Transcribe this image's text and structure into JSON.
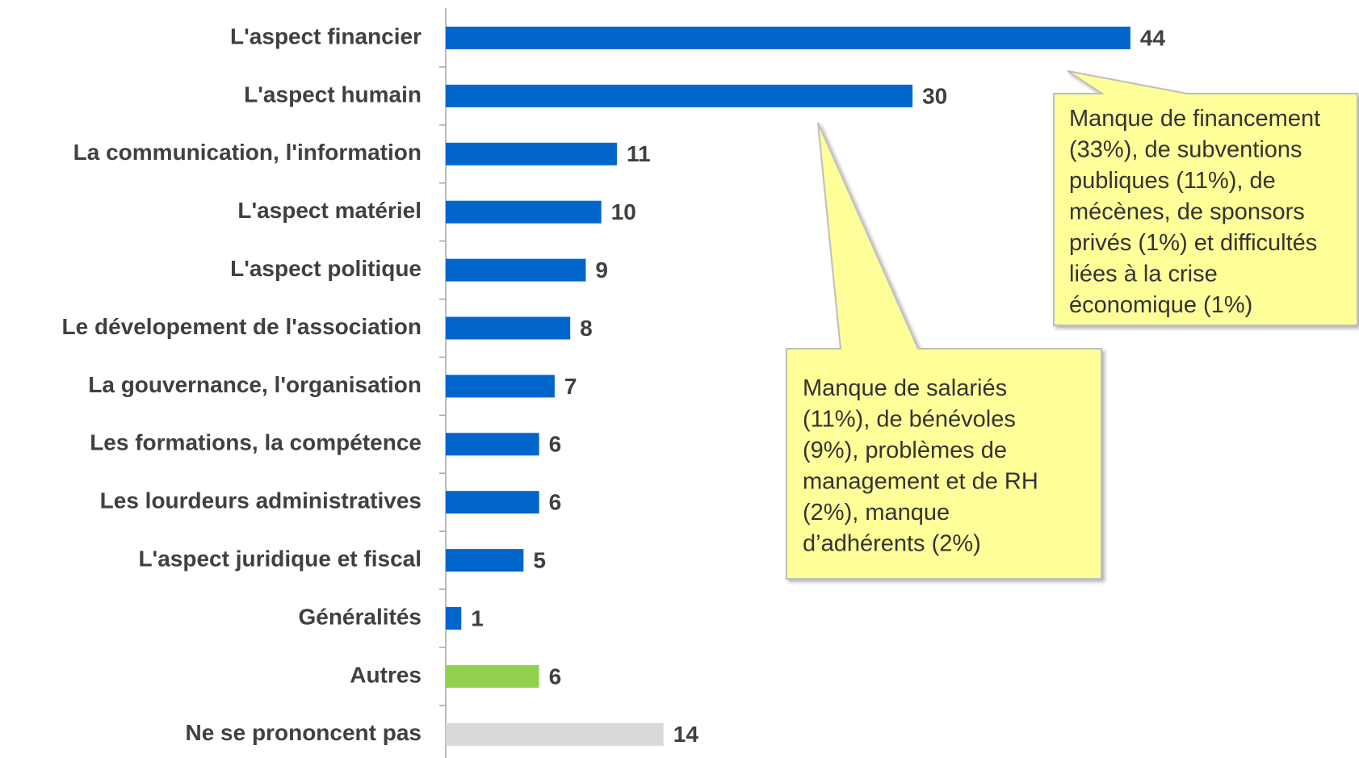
{
  "chart_data": {
    "type": "bar",
    "orientation": "horizontal",
    "categories": [
      "L'aspect financier",
      "L'aspect humain",
      "La communication, l'information",
      "L'aspect matériel",
      "L'aspect politique",
      "Le dévelopement de l'association",
      "La gouvernance, l'organisation",
      "Les formations, la compétence",
      "Les lourdeurs administratives",
      "L'aspect juridique et fiscal",
      "Généralités",
      "Autres",
      "Ne se prononcent pas"
    ],
    "values": [
      44,
      30,
      11,
      10,
      9,
      8,
      7,
      6,
      6,
      5,
      1,
      6,
      14
    ],
    "colors": [
      "#0066cc",
      "#0066cc",
      "#0066cc",
      "#0066cc",
      "#0066cc",
      "#0066cc",
      "#0066cc",
      "#0066cc",
      "#0066cc",
      "#0066cc",
      "#0066cc",
      "#92d050",
      "#d9d9d9"
    ],
    "annotations": [
      {
        "lines": [
          "Manque de financement",
          "(33%), de subventions",
          "publiques (11%), de",
          "mécènes, de sponsors",
          "privés (1%) et difficultés",
          "liées à la crise",
          "économique (1%)"
        ]
      },
      {
        "lines": [
          "Manque de salariés",
          "(11%), de bénévoles",
          "(9%), problèmes de",
          "management  et de RH",
          "(2%), manque",
          "d’adhérents (2%)"
        ]
      }
    ]
  }
}
